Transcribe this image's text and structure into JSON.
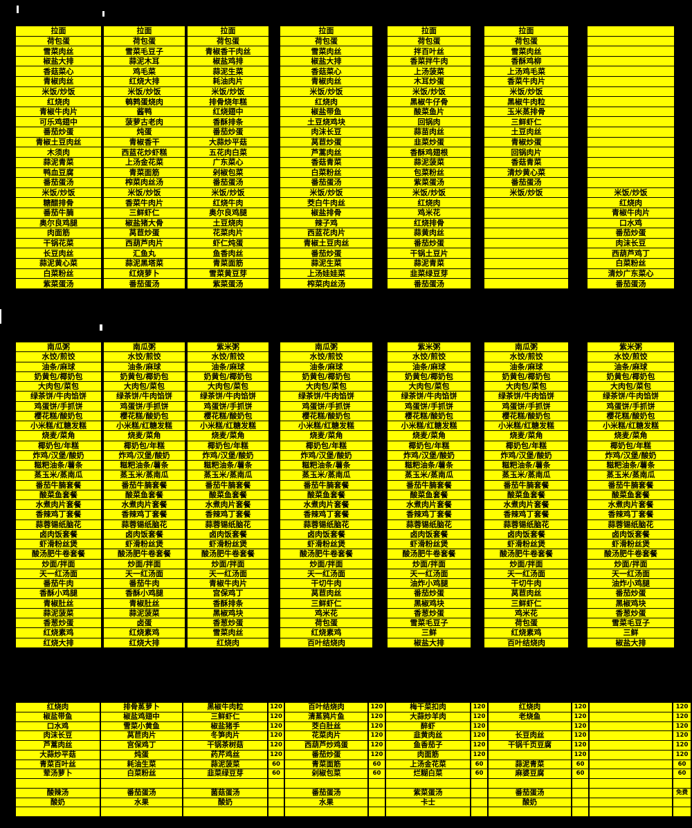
{
  "colors": {
    "page_background": "#000000",
    "cell_background": "#FFFF00",
    "grid_line": "#000000",
    "text": "#000000",
    "artifact_mark": "#FFFFFF"
  },
  "sections": {
    "top": {
      "columns": [
        {
          "rows": [
            "拉面",
            "荷包蛋",
            "雪菜肉丝",
            "椒盐大排",
            "香菇菜心",
            "青椒肉丝",
            "米饭/炒饭",
            "红烧肉",
            "青椒牛肉片",
            "可乐鸡翅中",
            "番茄炒蛋",
            "青椒土豆肉丝",
            "木须肉",
            "蒜泥青菜",
            "鸭血豆腐",
            "番茄蛋汤",
            "米饭/炒饭",
            "糖醋排骨",
            "番茄牛腩",
            "奥尔良鸡腿",
            "肉面筋",
            "干锅花菜",
            "长豆肉丝",
            "蒜泥黄心菜",
            "白菜粉丝",
            "紫菜蛋汤"
          ]
        },
        {
          "rows": [
            "拉面",
            "荷包蛋",
            "雪菜毛豆子",
            "蒜泥木耳",
            "鸡毛菜",
            "红烧大排",
            "米饭/炒饭",
            "鹌鹑蛋烧肉",
            "酱鸭",
            "菠萝古老肉",
            "炖蛋",
            "青椒香干",
            "西蓝花炒虾糕",
            "上汤金花菜",
            "青菜面筋",
            "榨菜肉丝汤",
            "米饭/炒饭",
            "香菜牛肉片",
            "三鲜虾仁",
            "椒盐猪大骨",
            "莴苣炒蛋",
            "西葫芦肉片",
            "汇鱼丸",
            "蒜泥黑塔菜",
            "红烧萝卜",
            "番茄蛋汤"
          ]
        },
        {
          "rows": [
            "拉面",
            "荷包蛋",
            "青椒香干肉丝",
            "椒盐鸡排",
            "蒜泥生菜",
            "耗油肉片",
            "米饭/炒饭",
            "排骨烧年糕",
            "红烧翅中",
            "香酥排条",
            "番茄炒蛋",
            "大蒜炒平菇",
            "五花肉白菜",
            "广东菜心",
            "剁椒包菜",
            "番茄蛋汤",
            "米饭/炒饭",
            "红烧牛肉",
            "奥尔良鸡腿",
            "土豆烧肉",
            "花菜肉片",
            "虾仁炖蛋",
            "鱼香肉丝",
            "青菜面筋",
            "雪菜黄豆芽",
            "紫菜蛋汤"
          ]
        },
        {
          "rows": [
            "拉面",
            "荷包蛋",
            "雪菜肉丝",
            "椒盐大排",
            "香菇菜心",
            "青椒肉丝",
            "米饭/炒饭",
            "红烧肉",
            "椒盐带鱼",
            "土豆烧鸡块",
            "肉沫长豆",
            "莴苣炒蛋",
            "芦蒿肉丝",
            "香菇青菜",
            "白菜粉丝",
            "番茄蛋汤",
            "米饭/炒饭",
            "茭白牛肉丝",
            "椒盐排骨",
            "辣子鸡",
            "西蓝花肉片",
            "青椒土豆肉丝",
            "番茄炒蛋",
            "蒜泥生菜",
            "上汤娃娃菜",
            "榨菜肉丝汤"
          ]
        },
        {
          "rows": [
            "拉面",
            "荷包蛋",
            "拌百叶丝",
            "香菜拌牛肉",
            "上汤菠菜",
            "木耳炒蛋",
            "米饭/炒饭",
            "黑椒牛仔骨",
            "酸菜鱼片",
            "回锅肉",
            "蒜苗肉丝",
            "韭菜炒蛋",
            "香酥鸡翅根",
            "蒜泥菠菜",
            "包菜粉丝",
            "紫菜蛋汤",
            "米饭/炒饭",
            "红烧肉",
            "鸡米花",
            "红烧排骨",
            "蒜黄肉丝",
            "番茄炒蛋",
            "干锅土豆片",
            "蒜泥青菜",
            "韭菜绿豆芽",
            "番茄蛋汤"
          ]
        },
        {
          "rows": [
            "拉面",
            "荷包蛋",
            "雪菜肉丝",
            "香酥鸡柳",
            "上汤鸡毛菜",
            "香菜牛肉片",
            "米饭/炒饭",
            "黑椒牛肉粒",
            "玉米蒸排骨",
            "三鲜虾仁",
            "土豆肉丝",
            "青椒炒蛋",
            "回锅肉片",
            "香菇青菜",
            "清炒黄心菜",
            "番茄蛋汤",
            "米饭/炒饭",
            "",
            "",
            "",
            "",
            "",
            "",
            "",
            "",
            ""
          ]
        },
        {
          "rows": [
            "",
            "",
            "",
            "",
            "",
            "",
            "",
            "",
            "",
            "",
            "",
            "",
            "",
            "",
            "",
            "",
            "米饭/炒饭",
            "红烧肉",
            "青椒牛肉片",
            "口水鸡",
            "番茄炒蛋",
            "肉沫长豆",
            "西葫芦鸡丁",
            "白菜粉丝",
            "清炒广东菜心",
            "番茄蛋汤"
          ]
        }
      ]
    },
    "middle": {
      "columns": [
        {
          "rows": [
            "南瓜粥",
            "水饺/煎饺",
            "油条/麻球",
            "奶黄包/椰奶包",
            "大肉包/菜包",
            "绿茶饼/牛肉馅饼",
            "鸡蛋饼/手抓饼",
            "樱花糕/酸奶包",
            "小米糕/红糖发糕",
            "烧麦/菜角",
            "椰奶包/年糕",
            "炸鸡/汉堡/酸奶",
            "糍粑油条/薯条",
            "蒸玉米/蒸南瓜",
            "番茄牛腩套餐",
            "酸菜鱼套餐",
            "水煮肉片套餐",
            "香辣鸡丁套餐",
            "蒜蓉锡纸脑花",
            "卤肉饭套餐",
            "虾滑粉丝煲",
            "酸汤肥牛卷套餐",
            "炒面/拌面",
            "天一红汤面",
            "番茄牛肉",
            "香酥小鸡腿",
            "青椒肚丝",
            "蒜泥菠菜",
            "香葱炒蛋",
            "红烧素鸡",
            "红烧大排"
          ]
        },
        {
          "rows": [
            "南瓜粥",
            "水饺/煎饺",
            "油条/麻球",
            "奶黄包/椰奶包",
            "大肉包/菜包",
            "绿茶饼/牛肉馅饼",
            "鸡蛋饼/手抓饼",
            "樱花糕/酸奶包",
            "小米糕/红糖发糕",
            "烧麦/菜角",
            "椰奶包/年糕",
            "炸鸡/汉堡/酸奶",
            "糍粑油条/薯条",
            "蒸玉米/蒸南瓜",
            "番茄牛腩套餐",
            "酸菜鱼套餐",
            "水煮肉片套餐",
            "香辣鸡丁套餐",
            "蒜蓉锡纸脑花",
            "卤肉饭套餐",
            "虾滑粉丝煲",
            "酸汤肥牛卷套餐",
            "炒面/拌面",
            "天一红汤面",
            "番茄牛肉",
            "香酥小鸡腿",
            "青椒肚丝",
            "蒜泥菠菜",
            "卤蛋",
            "红烧素鸡",
            "红烧大排"
          ]
        },
        {
          "rows": [
            "紫米粥",
            "水饺/煎饺",
            "油条/麻球",
            "奶黄包/椰奶包",
            "大肉包/菜包",
            "绿茶饼/牛肉馅饼",
            "鸡蛋饼/手抓饼",
            "樱花糕/酸奶包",
            "小米糕/红糖发糕",
            "烧麦/菜角",
            "椰奶包/年糕",
            "炸鸡/汉堡/酸奶",
            "糍粑油条/薯条",
            "蒸玉米/蒸南瓜",
            "番茄牛腩套餐",
            "酸菜鱼套餐",
            "水煮肉片套餐",
            "香辣鸡丁套餐",
            "蒜蓉锡纸脑花",
            "卤肉饭套餐",
            "虾滑粉丝煲",
            "酸汤肥牛卷套餐",
            "炒面/拌面",
            "天一红汤面",
            "青椒牛肉片",
            "宫保鸡丁",
            "香酥排条",
            "黑椒鸡块",
            "香葱炒蛋",
            "雪菜肉丝",
            "红烧肉"
          ]
        },
        {
          "rows": [
            "南瓜粥",
            "水饺/煎饺",
            "油条/麻球",
            "奶黄包/椰奶包",
            "大肉包/菜包",
            "绿茶饼/牛肉馅饼",
            "鸡蛋饼/手抓饼",
            "樱花糕/酸奶包",
            "小米糕/红糖发糕",
            "烧麦/菜角",
            "椰奶包/年糕",
            "炸鸡/汉堡/酸奶",
            "糍粑油条/薯条",
            "蒸玉米/蒸南瓜",
            "番茄牛腩套餐",
            "酸菜鱼套餐",
            "水煮肉片套餐",
            "香辣鸡丁套餐",
            "蒜蓉锡纸脑花",
            "卤肉饭套餐",
            "虾滑粉丝煲",
            "酸汤肥牛卷套餐",
            "炒面/拌面",
            "天一红汤面",
            "干切牛肉",
            "莴苣肉丝",
            "三鲜虾仁",
            "鸡米花",
            "荷包蛋",
            "红烧素鸡",
            "百叶结烧肉"
          ]
        },
        {
          "rows": [
            "紫米粥",
            "水饺/煎饺",
            "油条/麻球",
            "奶黄包/椰奶包",
            "大肉包/菜包",
            "绿茶饼/牛肉馅饼",
            "鸡蛋饼/手抓饼",
            "樱花糕/酸奶包",
            "小米糕/红糖发糕",
            "烧麦/菜角",
            "椰奶包/年糕",
            "炸鸡/汉堡/酸奶",
            "糍粑油条/薯条",
            "蒸玉米/蒸南瓜",
            "番茄牛腩套餐",
            "酸菜鱼套餐",
            "水煮肉片套餐",
            "香辣鸡丁套餐",
            "蒜蓉锡纸脑花",
            "卤肉饭套餐",
            "虾滑粉丝煲",
            "酸汤肥牛卷套餐",
            "炒面/拌面",
            "天一红汤面",
            "油炸小鸡腿",
            "番茄炒蛋",
            "黑椒鸡块",
            "香葱炒蛋",
            "雪菜毛豆子",
            "三鲜",
            "椒盐大排"
          ]
        },
        {
          "rows": [
            "南瓜粥",
            "水饺/煎饺",
            "油条/麻球",
            "奶黄包/椰奶包",
            "大肉包/菜包",
            "绿茶饼/牛肉馅饼",
            "鸡蛋饼/手抓饼",
            "樱花糕/酸奶包",
            "小米糕/红糖发糕",
            "烧麦/菜角",
            "椰奶包/年糕",
            "炸鸡/汉堡/酸奶",
            "糍粑油条/薯条",
            "蒸玉米/蒸南瓜",
            "番茄牛腩套餐",
            "酸菜鱼套餐",
            "水煮肉片套餐",
            "香辣鸡丁套餐",
            "蒜蓉锡纸脑花",
            "卤肉饭套餐",
            "虾滑粉丝煲",
            "酸汤肥牛卷套餐",
            "炒面/拌面",
            "天一红汤面",
            "干切牛肉",
            "莴苣肉丝",
            "三鲜虾仁",
            "鸡米花",
            "荷包蛋",
            "红烧素鸡",
            "百叶结烧肉"
          ]
        },
        {
          "rows": [
            "紫米粥",
            "水饺/煎饺",
            "油条/麻球",
            "奶黄包/椰奶包",
            "大肉包/菜包",
            "绿茶饼/牛肉馅饼",
            "鸡蛋饼/手抓饼",
            "樱花糕/酸奶包",
            "小米糕/红糖发糕",
            "烧麦/菜角",
            "椰奶包/年糕",
            "炸鸡/汉堡/酸奶",
            "糍粑油条/薯条",
            "蒸玉米/蒸南瓜",
            "番茄牛腩套餐",
            "酸菜鱼套餐",
            "水煮肉片套餐",
            "香辣鸡丁套餐",
            "蒜蓉锡纸脑花",
            "卤肉饭套餐",
            "虾滑粉丝煲",
            "酸汤肥牛卷套餐",
            "炒面/拌面",
            "天一红汤面",
            "油炸小鸡腿",
            "番茄炒蛋",
            "黑椒鸡块",
            "香葱炒蛋",
            "雪菜毛豆子",
            "三鲜",
            "椒盐大排"
          ]
        }
      ]
    },
    "bottom": {
      "columns": [
        {
          "rows": [
            "红烧肉",
            "椒盐带鱼",
            "口水鸡",
            "肉沫长豆",
            "芦蒿肉丝",
            "大蒜炒平菇",
            "青菜百叶丝",
            "荤汤萝卜",
            "",
            "酸辣汤",
            "酸奶",
            ""
          ]
        },
        {
          "rows": [
            "排骨蒸萝卜",
            "椒盐鸡翅中",
            "雪菜小黄鱼",
            "莴苣肉片",
            "宫保鸡丁",
            "炖蛋",
            "耗油生菜",
            "白菜粉丝",
            "",
            "番茄蛋汤",
            "水果",
            ""
          ]
        },
        {
          "rows": [
            "黑椒牛肉粒",
            "三鲜虾仁",
            "椒盐猪手",
            "冬笋肉片",
            "干锅茶树菇",
            "药芹鸡丝",
            "蒜泥菠菜",
            "韭菜绿豆芽",
            "",
            "菌菇蛋汤",
            "酸奶",
            ""
          ]
        },
        {
          "rows": [
            "120",
            "120",
            "120",
            "120",
            "120",
            "120",
            "60",
            "60",
            "",
            "",
            "",
            ""
          ]
        },
        {
          "rows": [
            "百叶结烧肉",
            "清蒸鸦片鱼",
            "茭白肚丝",
            "花菜肉片",
            "西葫芦炒鸡蛋",
            "番茄炒蛋",
            "青菜面筋",
            "剁椒包菜",
            "",
            "番茄蛋汤",
            "水果",
            ""
          ]
        },
        {
          "rows": [
            "120",
            "120",
            "120",
            "120",
            "120",
            "120",
            "60",
            "60",
            "",
            "",
            "",
            ""
          ]
        },
        {
          "rows": [
            "梅干菜扣肉",
            "大蒜炒羊肉",
            "醉虾",
            "韭黄肉丝",
            "鱼香茄子",
            "肉面筋",
            "上汤金花菜",
            "烂糊白菜",
            "",
            "紫菜蛋汤",
            "卡士",
            ""
          ]
        },
        {
          "rows": [
            "120",
            "120",
            "120",
            "120",
            "120",
            "120",
            "60",
            "60",
            "",
            "",
            "",
            ""
          ]
        },
        {
          "rows": [
            "红烧肉",
            "老烧鱼",
            "",
            "长豆肉丝",
            "干锅千页豆腐",
            "",
            "蒜泥青菜",
            "麻婆豆腐",
            "",
            "番茄蛋汤",
            "酸奶",
            ""
          ]
        },
        {
          "rows": [
            "120",
            "120",
            "120",
            "120",
            "120",
            "120",
            "60",
            "60",
            "",
            "",
            "",
            ""
          ]
        },
        {
          "rows": [
            "",
            "",
            "",
            "",
            "",
            "",
            "",
            "",
            "",
            "",
            "",
            ""
          ]
        },
        {
          "rows": [
            "120",
            "120",
            "120",
            "120",
            "120",
            "120",
            "60",
            "60",
            "",
            "免费",
            "",
            ""
          ]
        }
      ]
    }
  }
}
